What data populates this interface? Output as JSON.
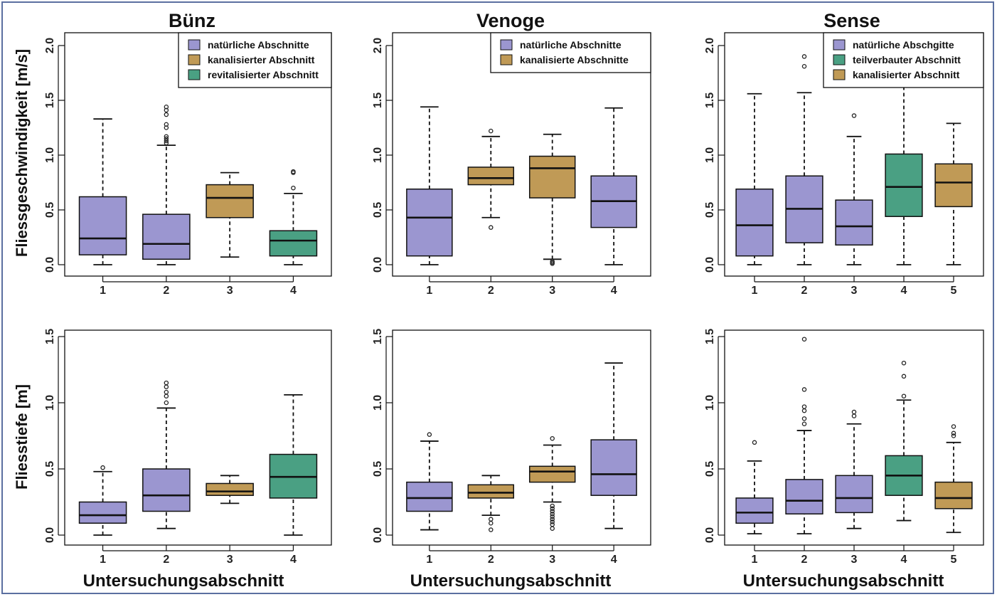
{
  "colors": {
    "natural": "#9b96d0",
    "channelized": "#c09a56",
    "revitalized": "#4aa083",
    "frame": "#5b6fa0"
  },
  "column_titles": [
    "Bünz",
    "Venoge",
    "Sense"
  ],
  "row_ylabels": [
    "Fliessgeschwindigkeit [m/s]",
    "Fliesstiefe [m]"
  ],
  "xlabel": "Untersuchungsabschnitt",
  "chart_data": [
    {
      "type": "box",
      "river": "Bünz",
      "variable": "Fliessgeschwindigkeit [m/s]",
      "ylim": [
        0,
        2.0
      ],
      "yticks": [
        "0.0",
        "0.5",
        "1.0",
        "1.5",
        "2.0"
      ],
      "categories": [
        "1",
        "2",
        "3",
        "4"
      ],
      "legend": [
        {
          "label": "natürliche Abschnitte",
          "color": "natural"
        },
        {
          "label": "kanalisierter Abschnitt",
          "color": "channelized"
        },
        {
          "label": "revitalisierter Abschnitt",
          "color": "revitalized"
        }
      ],
      "boxes": [
        {
          "x": "1",
          "min": 0.0,
          "q1": 0.09,
          "median": 0.24,
          "q3": 0.62,
          "max": 1.33,
          "outliers": [],
          "color": "natural"
        },
        {
          "x": "2",
          "min": 0.0,
          "q1": 0.05,
          "median": 0.19,
          "q3": 0.46,
          "max": 1.09,
          "outliers": [
            1.11,
            1.13,
            1.15,
            1.17,
            1.25,
            1.28,
            1.37,
            1.41,
            1.44
          ],
          "color": "natural"
        },
        {
          "x": "3",
          "min": 0.07,
          "q1": 0.43,
          "median": 0.61,
          "q3": 0.73,
          "max": 0.84,
          "outliers": [],
          "color": "channelized"
        },
        {
          "x": "4",
          "min": 0.0,
          "q1": 0.08,
          "median": 0.22,
          "q3": 0.31,
          "max": 0.65,
          "outliers": [
            0.7,
            0.84,
            0.85
          ],
          "color": "revitalized"
        }
      ]
    },
    {
      "type": "box",
      "river": "Venoge",
      "variable": "Fliessgeschwindigkeit [m/s]",
      "ylim": [
        0,
        2.0
      ],
      "yticks": [
        "0.0",
        "0.5",
        "1.0",
        "1.5",
        "2.0"
      ],
      "categories": [
        "1",
        "2",
        "3",
        "4"
      ],
      "legend": [
        {
          "label": "natürliche Abschnitte",
          "color": "natural"
        },
        {
          "label": "kanalisierte Abschnitte",
          "color": "channelized"
        }
      ],
      "boxes": [
        {
          "x": "1",
          "min": 0.0,
          "q1": 0.08,
          "median": 0.43,
          "q3": 0.69,
          "max": 1.44,
          "outliers": [],
          "color": "natural"
        },
        {
          "x": "2",
          "min": 0.43,
          "q1": 0.73,
          "median": 0.79,
          "q3": 0.89,
          "max": 1.17,
          "outliers": [
            0.34,
            1.22
          ],
          "color": "channelized"
        },
        {
          "x": "3",
          "min": 0.05,
          "q1": 0.61,
          "median": 0.88,
          "q3": 0.99,
          "max": 1.19,
          "outliers": [
            0.01,
            0.02,
            0.03
          ],
          "color": "channelized"
        },
        {
          "x": "4",
          "min": 0.0,
          "q1": 0.34,
          "median": 0.58,
          "q3": 0.81,
          "max": 1.43,
          "outliers": [],
          "color": "natural"
        }
      ]
    },
    {
      "type": "box",
      "river": "Sense",
      "variable": "Fliessgeschwindigkeit [m/s]",
      "ylim": [
        0,
        2.0
      ],
      "yticks": [
        "0.0",
        "0.5",
        "1.0",
        "1.5",
        "2.0"
      ],
      "categories": [
        "1",
        "2",
        "3",
        "4",
        "5"
      ],
      "legend": [
        {
          "label": "natürliche Abschgitte",
          "color": "natural"
        },
        {
          "label": "teilverbauter Abschnitt",
          "color": "revitalized"
        },
        {
          "label": "kanalisierter Abschnitt",
          "color": "channelized"
        }
      ],
      "boxes": [
        {
          "x": "1",
          "min": 0.0,
          "q1": 0.08,
          "median": 0.36,
          "q3": 0.69,
          "max": 1.56,
          "outliers": [],
          "color": "natural"
        },
        {
          "x": "2",
          "min": 0.0,
          "q1": 0.2,
          "median": 0.51,
          "q3": 0.81,
          "max": 1.57,
          "outliers": [
            1.81,
            1.9
          ],
          "color": "natural"
        },
        {
          "x": "3",
          "min": 0.0,
          "q1": 0.18,
          "median": 0.35,
          "q3": 0.59,
          "max": 1.17,
          "outliers": [
            1.36
          ],
          "color": "natural"
        },
        {
          "x": "4",
          "min": 0.0,
          "q1": 0.44,
          "median": 0.71,
          "q3": 1.01,
          "max": 1.62,
          "outliers": [],
          "color": "revitalized"
        },
        {
          "x": "5",
          "min": 0.0,
          "q1": 0.53,
          "median": 0.75,
          "q3": 0.92,
          "max": 1.29,
          "outliers": [],
          "color": "channelized"
        }
      ]
    },
    {
      "type": "box",
      "river": "Bünz",
      "variable": "Fliesstiefe [m]",
      "ylim": [
        0,
        1.5
      ],
      "yticks": [
        "0.0",
        "0.5",
        "1.0",
        "1.5"
      ],
      "categories": [
        "1",
        "2",
        "3",
        "4"
      ],
      "boxes": [
        {
          "x": "1",
          "min": 0.0,
          "q1": 0.09,
          "median": 0.15,
          "q3": 0.25,
          "max": 0.48,
          "outliers": [
            0.51
          ],
          "color": "natural"
        },
        {
          "x": "2",
          "min": 0.05,
          "q1": 0.18,
          "median": 0.3,
          "q3": 0.5,
          "max": 0.96,
          "outliers": [
            1.0,
            1.05,
            1.08,
            1.12,
            1.15
          ],
          "color": "natural"
        },
        {
          "x": "3",
          "min": 0.24,
          "q1": 0.3,
          "median": 0.33,
          "q3": 0.39,
          "max": 0.45,
          "outliers": [],
          "color": "channelized"
        },
        {
          "x": "4",
          "min": 0.0,
          "q1": 0.28,
          "median": 0.44,
          "q3": 0.61,
          "max": 1.06,
          "outliers": [],
          "color": "revitalized"
        }
      ]
    },
    {
      "type": "box",
      "river": "Venoge",
      "variable": "Fliesstiefe [m]",
      "ylim": [
        0,
        1.5
      ],
      "yticks": [
        "0.0",
        "0.5",
        "1.0",
        "1.5"
      ],
      "categories": [
        "1",
        "2",
        "3",
        "4"
      ],
      "boxes": [
        {
          "x": "1",
          "min": 0.04,
          "q1": 0.18,
          "median": 0.28,
          "q3": 0.4,
          "max": 0.71,
          "outliers": [
            0.76
          ],
          "color": "natural"
        },
        {
          "x": "2",
          "min": 0.15,
          "q1": 0.28,
          "median": 0.32,
          "q3": 0.38,
          "max": 0.45,
          "outliers": [
            0.04,
            0.09,
            0.12
          ],
          "color": "channelized"
        },
        {
          "x": "3",
          "min": 0.25,
          "q1": 0.4,
          "median": 0.48,
          "q3": 0.52,
          "max": 0.68,
          "outliers": [
            0.05,
            0.08,
            0.1,
            0.12,
            0.14,
            0.16,
            0.18,
            0.2,
            0.22,
            0.73
          ],
          "color": "channelized"
        },
        {
          "x": "4",
          "min": 0.05,
          "q1": 0.3,
          "median": 0.46,
          "q3": 0.72,
          "max": 1.3,
          "outliers": [],
          "color": "natural"
        }
      ]
    },
    {
      "type": "box",
      "river": "Sense",
      "variable": "Fliesstiefe [m]",
      "ylim": [
        0,
        1.5
      ],
      "yticks": [
        "0.0",
        "0.5",
        "1.0",
        "1.5"
      ],
      "categories": [
        "1",
        "2",
        "3",
        "4",
        "5"
      ],
      "boxes": [
        {
          "x": "1",
          "min": 0.01,
          "q1": 0.09,
          "median": 0.17,
          "q3": 0.28,
          "max": 0.56,
          "outliers": [
            0.7
          ],
          "color": "natural"
        },
        {
          "x": "2",
          "min": 0.01,
          "q1": 0.16,
          "median": 0.26,
          "q3": 0.42,
          "max": 0.79,
          "outliers": [
            0.84,
            0.88,
            0.94,
            0.97,
            1.1,
            1.48
          ],
          "color": "natural"
        },
        {
          "x": "3",
          "min": 0.05,
          "q1": 0.17,
          "median": 0.28,
          "q3": 0.45,
          "max": 0.84,
          "outliers": [
            0.9,
            0.93
          ],
          "color": "natural"
        },
        {
          "x": "4",
          "min": 0.11,
          "q1": 0.3,
          "median": 0.45,
          "q3": 0.6,
          "max": 1.02,
          "outliers": [
            1.05,
            1.2,
            1.3
          ],
          "color": "revitalized"
        },
        {
          "x": "5",
          "min": 0.02,
          "q1": 0.2,
          "median": 0.28,
          "q3": 0.4,
          "max": 0.7,
          "outliers": [
            0.75,
            0.77,
            0.82
          ],
          "color": "channelized"
        }
      ]
    }
  ]
}
